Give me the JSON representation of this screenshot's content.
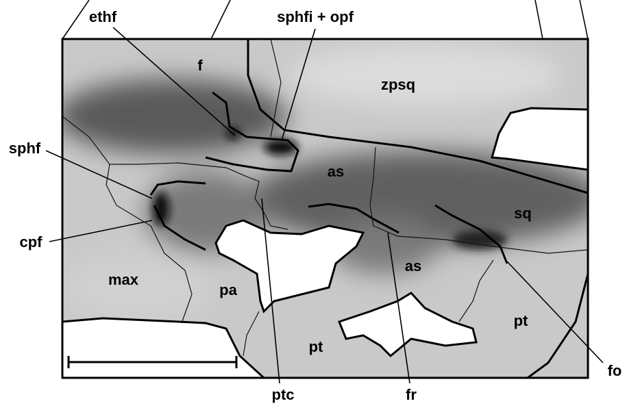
{
  "labels": [
    "ethf",
    "sphfi + opf",
    "f",
    "zpsq",
    "as",
    "sq",
    "sphf",
    "cpf",
    "max",
    "pa",
    "as",
    "pt",
    "pt",
    "ptc",
    "fr",
    "fo"
  ]
}
